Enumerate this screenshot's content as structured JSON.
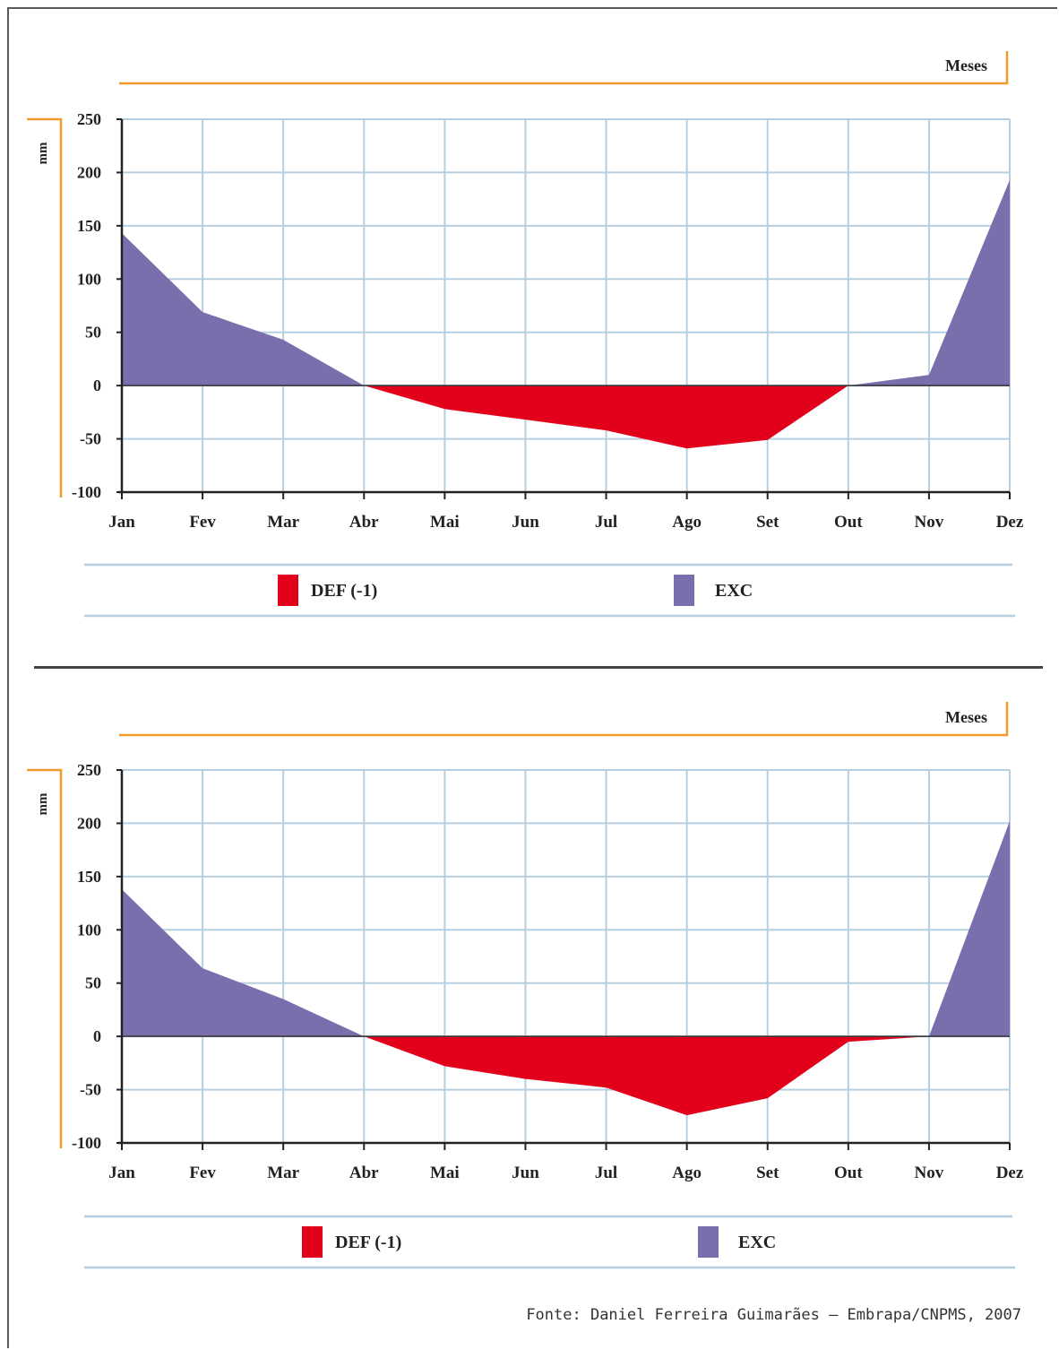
{
  "source": "Fonte: Daniel Ferreira Guimarães – Embrapa/CNPMS, 2007",
  "colors": {
    "def": "#e2001a",
    "exc": "#7b6ead",
    "grid": "#b6cfe0",
    "accent": "#f39a2a",
    "axis": "#222222"
  },
  "chart_data": [
    {
      "type": "area",
      "xlabel": "Meses",
      "ylabel": "mm",
      "categories": [
        "Jan",
        "Fev",
        "Mar",
        "Abr",
        "Mai",
        "Jun",
        "Jul",
        "Ago",
        "Set",
        "Out",
        "Nov",
        "Dez"
      ],
      "yticks": [
        250,
        200,
        150,
        100,
        50,
        0,
        -50,
        -100
      ],
      "ylim": [
        -100,
        250
      ],
      "grid": true,
      "legend_position": "bottom",
      "series": [
        {
          "name": "DEF (-1)",
          "values": [
            0,
            0,
            0,
            0,
            -22,
            -32,
            -42,
            -59,
            -51,
            0,
            0,
            0
          ]
        },
        {
          "name": "EXC",
          "values": [
            143,
            69,
            43,
            0,
            0,
            0,
            0,
            0,
            0,
            0,
            10,
            193
          ]
        }
      ]
    },
    {
      "type": "area",
      "xlabel": "Meses",
      "ylabel": "mm",
      "categories": [
        "Jan",
        "Fev",
        "Mar",
        "Abr",
        "Mai",
        "Jun",
        "Jul",
        "Ago",
        "Set",
        "Out",
        "Nov",
        "Dez"
      ],
      "yticks": [
        250,
        200,
        150,
        100,
        50,
        0,
        -50,
        -100
      ],
      "ylim": [
        -100,
        250
      ],
      "grid": true,
      "legend_position": "bottom",
      "series": [
        {
          "name": "DEF (-1)",
          "values": [
            0,
            0,
            0,
            0,
            -28,
            -40,
            -48,
            -74,
            -58,
            -5,
            0,
            0
          ]
        },
        {
          "name": "EXC",
          "values": [
            138,
            64,
            35,
            0,
            0,
            0,
            0,
            0,
            0,
            0,
            0,
            202
          ]
        }
      ]
    }
  ]
}
